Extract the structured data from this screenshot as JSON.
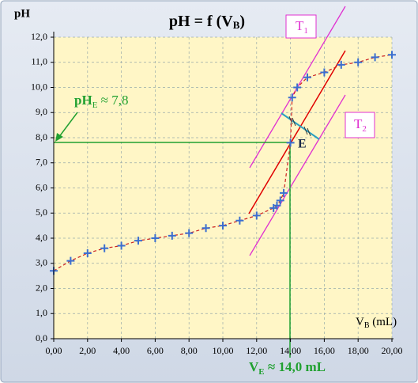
{
  "chart_data": {
    "type": "scatter",
    "title": {
      "main": "pH = f (V",
      "sub": "B",
      "end": ")"
    },
    "y_label": "pH",
    "x_label": {
      "main": "V",
      "sub": "B",
      "end": " (mL)"
    },
    "annotations": {
      "ph_e": {
        "main": "pH",
        "sub": "E",
        "end": " ≈ 7,8"
      },
      "v_e": {
        "main": "V",
        "sub": "E",
        "end": " ≈ 14,0 mL"
      },
      "t1": {
        "main": "T",
        "sub": "1"
      },
      "t2": {
        "main": "T",
        "sub": "2"
      },
      "e": "E"
    },
    "x": [
      0,
      1,
      2,
      3,
      4,
      5,
      6,
      7,
      8,
      9,
      10,
      11,
      12,
      13,
      13.2,
      13.4,
      13.6,
      14.0,
      14.1,
      14.4,
      15,
      16,
      17,
      18,
      19,
      20
    ],
    "values": [
      2.7,
      3.1,
      3.4,
      3.6,
      3.7,
      3.9,
      4.0,
      4.1,
      4.2,
      4.4,
      4.5,
      4.7,
      4.9,
      5.2,
      5.3,
      5.5,
      5.8,
      7.8,
      9.6,
      10.0,
      10.4,
      10.6,
      10.9,
      11.0,
      11.2,
      11.3
    ],
    "color": "#3b6fd0",
    "line_color": "#cc2020",
    "xlim": [
      0,
      20
    ],
    "ylim": [
      0,
      12
    ],
    "grid": true,
    "xticks": [
      {
        "value": 0,
        "label": "0,00"
      },
      {
        "value": 2,
        "label": "2,00"
      },
      {
        "value": 4,
        "label": "4,00"
      },
      {
        "value": 6,
        "label": "6,00"
      },
      {
        "value": 8,
        "label": "8,00"
      },
      {
        "value": 10,
        "label": "10,00"
      },
      {
        "value": 12,
        "label": "12,00"
      },
      {
        "value": 14,
        "label": "14,00"
      },
      {
        "value": 16,
        "label": "16,00"
      },
      {
        "value": 18,
        "label": "18,00"
      },
      {
        "value": 20,
        "label": "20,00"
      }
    ],
    "yticks": [
      {
        "value": 0,
        "label": "0,0"
      },
      {
        "value": 1,
        "label": "1,0"
      },
      {
        "value": 2,
        "label": "2,0"
      },
      {
        "value": 3,
        "label": "3,0"
      },
      {
        "value": 4,
        "label": "4,0"
      },
      {
        "value": 5,
        "label": "5,0"
      },
      {
        "value": 6,
        "label": "6,0"
      },
      {
        "value": 7,
        "label": "7,0"
      },
      {
        "value": 8,
        "label": "8,0"
      },
      {
        "value": 9,
        "label": "9,0"
      },
      {
        "value": 10,
        "label": "10,0"
      },
      {
        "value": 11,
        "label": "11,0"
      },
      {
        "value": 12,
        "label": "12,0"
      }
    ]
  }
}
